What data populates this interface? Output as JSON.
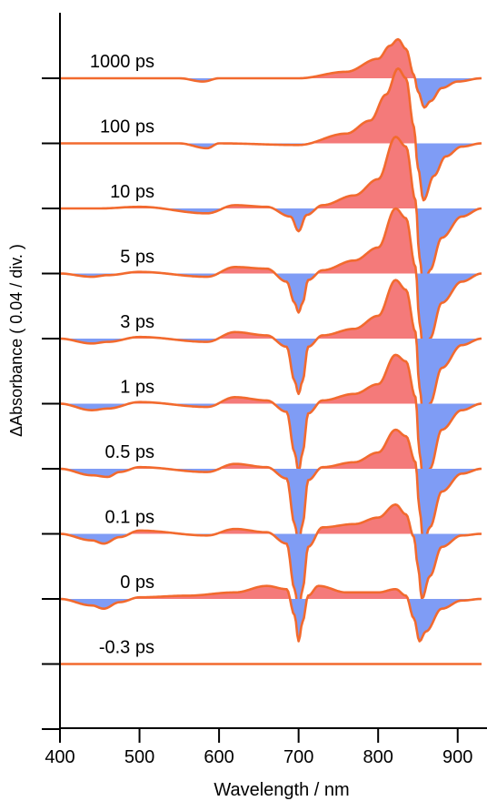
{
  "chart_data": {
    "type": "line",
    "title": "",
    "xlabel": "Wavelength / nm",
    "ylabel": "ΔAbsorbance ( 0.04 / div. )",
    "xlim": [
      400,
      930
    ],
    "x_ticks": [
      400,
      500,
      600,
      700,
      800,
      900
    ],
    "grid": false,
    "legend": "none",
    "fill_positive_color": "#f47a7a",
    "fill_negative_color": "#7f9cf5",
    "line_color": "#f26a2e",
    "y_div_units": 0.04,
    "series": [
      {
        "name": "1000 ps",
        "points": [
          [
            400,
            0
          ],
          [
            550,
            0
          ],
          [
            580,
            -0.002
          ],
          [
            600,
            0
          ],
          [
            700,
            0
          ],
          [
            760,
            0.004
          ],
          [
            800,
            0.012
          ],
          [
            815,
            0.02
          ],
          [
            825,
            0.024
          ],
          [
            835,
            0.018
          ],
          [
            845,
            0.002
          ],
          [
            850,
            -0.008
          ],
          [
            858,
            -0.018
          ],
          [
            866,
            -0.014
          ],
          [
            880,
            -0.006
          ],
          [
            900,
            -0.002
          ],
          [
            930,
            0
          ]
        ]
      },
      {
        "name": "100 ps",
        "points": [
          [
            400,
            0
          ],
          [
            550,
            0
          ],
          [
            585,
            -0.003
          ],
          [
            600,
            0
          ],
          [
            700,
            -0.001
          ],
          [
            760,
            0.006
          ],
          [
            790,
            0.014
          ],
          [
            810,
            0.03
          ],
          [
            825,
            0.046
          ],
          [
            835,
            0.04
          ],
          [
            845,
            0.01
          ],
          [
            850,
            -0.015
          ],
          [
            857,
            -0.035
          ],
          [
            870,
            -0.02
          ],
          [
            885,
            -0.008
          ],
          [
            905,
            -0.002
          ],
          [
            930,
            0
          ]
        ]
      },
      {
        "name": "10 ps",
        "points": [
          [
            400,
            0
          ],
          [
            450,
            0
          ],
          [
            500,
            0.001
          ],
          [
            585,
            -0.003
          ],
          [
            620,
            0.002
          ],
          [
            660,
            0.001
          ],
          [
            690,
            -0.005
          ],
          [
            700,
            -0.014
          ],
          [
            710,
            -0.004
          ],
          [
            730,
            0.002
          ],
          [
            770,
            0.008
          ],
          [
            800,
            0.018
          ],
          [
            822,
            0.044
          ],
          [
            835,
            0.038
          ],
          [
            847,
            0.005
          ],
          [
            852,
            -0.03
          ],
          [
            857,
            -0.05
          ],
          [
            865,
            -0.038
          ],
          [
            880,
            -0.018
          ],
          [
            905,
            -0.005
          ],
          [
            930,
            0
          ]
        ]
      },
      {
        "name": "5 ps",
        "points": [
          [
            400,
            0
          ],
          [
            440,
            -0.002
          ],
          [
            460,
            -0.001
          ],
          [
            500,
            0.001
          ],
          [
            585,
            -0.002
          ],
          [
            620,
            0.004
          ],
          [
            660,
            0.003
          ],
          [
            685,
            -0.005
          ],
          [
            695,
            -0.018
          ],
          [
            700,
            -0.024
          ],
          [
            705,
            -0.018
          ],
          [
            712,
            -0.004
          ],
          [
            730,
            0.002
          ],
          [
            770,
            0.008
          ],
          [
            800,
            0.016
          ],
          [
            822,
            0.04
          ],
          [
            835,
            0.034
          ],
          [
            847,
            0.004
          ],
          [
            852,
            -0.03
          ],
          [
            857,
            -0.05
          ],
          [
            865,
            -0.04
          ],
          [
            880,
            -0.018
          ],
          [
            905,
            -0.005
          ],
          [
            930,
            0
          ]
        ]
      },
      {
        "name": "3 ps",
        "points": [
          [
            400,
            0
          ],
          [
            440,
            -0.003
          ],
          [
            460,
            -0.002
          ],
          [
            500,
            0.001
          ],
          [
            585,
            -0.002
          ],
          [
            620,
            0.004
          ],
          [
            660,
            0.002
          ],
          [
            685,
            -0.005
          ],
          [
            695,
            -0.026
          ],
          [
            700,
            -0.034
          ],
          [
            705,
            -0.026
          ],
          [
            712,
            -0.005
          ],
          [
            730,
            0.002
          ],
          [
            770,
            0.006
          ],
          [
            800,
            0.014
          ],
          [
            822,
            0.036
          ],
          [
            835,
            0.03
          ],
          [
            847,
            0.004
          ],
          [
            852,
            -0.03
          ],
          [
            857,
            -0.05
          ],
          [
            865,
            -0.04
          ],
          [
            880,
            -0.018
          ],
          [
            905,
            -0.004
          ],
          [
            930,
            0
          ]
        ]
      },
      {
        "name": "1 ps",
        "points": [
          [
            400,
            0
          ],
          [
            440,
            -0.004
          ],
          [
            460,
            -0.003
          ],
          [
            500,
            0.001
          ],
          [
            585,
            -0.002
          ],
          [
            620,
            0.004
          ],
          [
            660,
            0.002
          ],
          [
            685,
            -0.005
          ],
          [
            695,
            -0.03
          ],
          [
            700,
            -0.042
          ],
          [
            705,
            -0.03
          ],
          [
            712,
            -0.006
          ],
          [
            730,
            0.002
          ],
          [
            770,
            0.006
          ],
          [
            800,
            0.012
          ],
          [
            822,
            0.03
          ],
          [
            835,
            0.026
          ],
          [
            847,
            0.004
          ],
          [
            852,
            -0.03
          ],
          [
            857,
            -0.05
          ],
          [
            865,
            -0.04
          ],
          [
            880,
            -0.016
          ],
          [
            905,
            -0.004
          ],
          [
            930,
            0
          ]
        ]
      },
      {
        "name": "0.5 ps",
        "points": [
          [
            400,
            0
          ],
          [
            440,
            -0.004
          ],
          [
            460,
            -0.005
          ],
          [
            475,
            -0.002
          ],
          [
            500,
            0.001
          ],
          [
            585,
            -0.002
          ],
          [
            620,
            0.003
          ],
          [
            660,
            0.001
          ],
          [
            685,
            -0.006
          ],
          [
            695,
            -0.034
          ],
          [
            700,
            -0.046
          ],
          [
            705,
            -0.034
          ],
          [
            712,
            -0.007
          ],
          [
            730,
            0.001
          ],
          [
            770,
            0.004
          ],
          [
            800,
            0.01
          ],
          [
            822,
            0.024
          ],
          [
            835,
            0.02
          ],
          [
            847,
            0.004
          ],
          [
            852,
            -0.025
          ],
          [
            857,
            -0.046
          ],
          [
            865,
            -0.036
          ],
          [
            880,
            -0.014
          ],
          [
            905,
            -0.003
          ],
          [
            930,
            0
          ]
        ]
      },
      {
        "name": "0.1 ps",
        "points": [
          [
            400,
            0
          ],
          [
            440,
            -0.004
          ],
          [
            455,
            -0.006
          ],
          [
            475,
            -0.002
          ],
          [
            500,
            0.002
          ],
          [
            585,
            -0.001
          ],
          [
            620,
            0.003
          ],
          [
            660,
            0.001
          ],
          [
            685,
            -0.006
          ],
          [
            695,
            -0.034
          ],
          [
            700,
            -0.048
          ],
          [
            705,
            -0.034
          ],
          [
            712,
            -0.008
          ],
          [
            730,
            0.004
          ],
          [
            770,
            0.006
          ],
          [
            800,
            0.01
          ],
          [
            822,
            0.018
          ],
          [
            835,
            0.012
          ],
          [
            845,
            -0.002
          ],
          [
            850,
            -0.02
          ],
          [
            855,
            -0.04
          ],
          [
            865,
            -0.026
          ],
          [
            880,
            -0.008
          ],
          [
            905,
            -0.001
          ],
          [
            930,
            0
          ]
        ]
      },
      {
        "name": "0 ps",
        "points": [
          [
            400,
            0
          ],
          [
            440,
            -0.004
          ],
          [
            455,
            -0.006
          ],
          [
            475,
            -0.002
          ],
          [
            500,
            0.001
          ],
          [
            560,
            0.002
          ],
          [
            620,
            0.004
          ],
          [
            660,
            0.008
          ],
          [
            685,
            0.006
          ],
          [
            695,
            -0.01
          ],
          [
            700,
            -0.026
          ],
          [
            705,
            -0.014
          ],
          [
            712,
            0.002
          ],
          [
            725,
            0.008
          ],
          [
            760,
            0.004
          ],
          [
            800,
            0.004
          ],
          [
            822,
            0.006
          ],
          [
            835,
            0.002
          ],
          [
            845,
            -0.012
          ],
          [
            852,
            -0.026
          ],
          [
            860,
            -0.02
          ],
          [
            880,
            -0.006
          ],
          [
            905,
            -0.001
          ],
          [
            930,
            0
          ]
        ]
      },
      {
        "name": "-0.3 ps",
        "points": [
          [
            400,
            0
          ],
          [
            930,
            0
          ]
        ]
      }
    ]
  }
}
